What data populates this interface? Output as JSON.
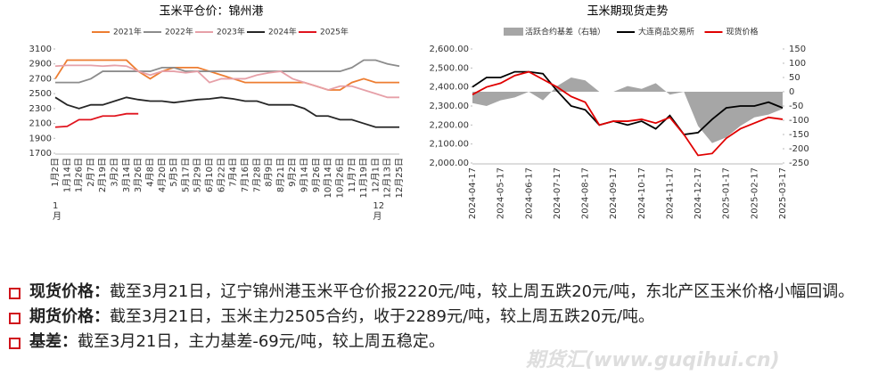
{
  "chart_data": [
    {
      "type": "line",
      "title": "玉米平仓价：锦州港",
      "categories": [
        "1月2日",
        "1月14日",
        "1月26日",
        "2月7日",
        "2月19日",
        "3月2日",
        "3月14日",
        "3月26日",
        "4月8日",
        "4月20日",
        "5月5日",
        "5月17日",
        "5月29日",
        "6月10日",
        "6月22日",
        "7月4日",
        "7月16日",
        "7月28日",
        "8月9日",
        "8月21日",
        "9月2日",
        "9月14日",
        "9月26日",
        "10月14日",
        "10月26日",
        "11月7日",
        "11月19日",
        "12月1日",
        "12月13日",
        "12月25日"
      ],
      "x_group_labels": [
        "1月",
        "12月"
      ],
      "ylim": [
        1700,
        3100
      ],
      "yticks": [
        1700,
        1900,
        2100,
        2300,
        2500,
        2700,
        2900,
        3100
      ],
      "grid": false,
      "series": [
        {
          "name": "2021年",
          "color": "#ed7d31",
          "values": [
            2700,
            2950,
            2950,
            2950,
            2950,
            2950,
            2950,
            2800,
            2700,
            2800,
            2850,
            2850,
            2850,
            2800,
            2750,
            2700,
            2650,
            2650,
            2650,
            2650,
            2650,
            2650,
            2600,
            2550,
            2550,
            2650,
            2700,
            2650,
            2650,
            2650
          ]
        },
        {
          "name": "2022年",
          "color": "#8c8c8c",
          "values": [
            2650,
            2650,
            2650,
            2700,
            2800,
            2800,
            2800,
            2800,
            2800,
            2850,
            2850,
            2800,
            2800,
            2800,
            2800,
            2800,
            2800,
            2800,
            2800,
            2800,
            2800,
            2800,
            2800,
            2800,
            2800,
            2850,
            2950,
            2950,
            2900,
            2870
          ]
        },
        {
          "name": "2023年",
          "color": "#e6a0a8",
          "values": [
            2870,
            2880,
            2880,
            2880,
            2870,
            2880,
            2870,
            2800,
            2750,
            2800,
            2800,
            2780,
            2800,
            2650,
            2700,
            2700,
            2700,
            2750,
            2780,
            2800,
            2700,
            2650,
            2600,
            2550,
            2600,
            2600,
            2550,
            2500,
            2450,
            2450
          ]
        },
        {
          "name": "2024年",
          "color": "#262626",
          "values": [
            2450,
            2350,
            2300,
            2350,
            2350,
            2400,
            2450,
            2420,
            2400,
            2400,
            2380,
            2400,
            2420,
            2430,
            2450,
            2430,
            2400,
            2400,
            2350,
            2350,
            2350,
            2300,
            2200,
            2200,
            2150,
            2150,
            2100,
            2050,
            2050,
            2050
          ]
        },
        {
          "name": "2025年",
          "color": "#e0141e",
          "values": [
            2050,
            2060,
            2150,
            2150,
            2200,
            2200,
            2230,
            2230,
            null,
            null,
            null,
            null,
            null,
            null,
            null,
            null,
            null,
            null,
            null,
            null,
            null,
            null,
            null,
            null,
            null,
            null,
            null,
            null,
            null,
            null
          ]
        }
      ]
    },
    {
      "type": "line",
      "title": "玉米期现货走势",
      "categories": [
        "2024-04-17",
        null,
        "2024-05-17",
        null,
        "2024-06-17",
        null,
        "2024-07-17",
        null,
        "2024-08-17",
        null,
        "2024-09-17",
        null,
        "2024-10-17",
        null,
        "2024-11-17",
        null,
        "2024-12-17",
        null,
        "2025-01-17",
        null,
        "2025-02-17",
        null,
        "2025-03-17"
      ],
      "ylim": [
        2000,
        2600
      ],
      "yticks": [
        {
          "value": 2000,
          "label": "2,000.00"
        },
        {
          "value": 2100,
          "label": "2,100.00"
        },
        {
          "value": 2200,
          "label": "2,200.00"
        },
        {
          "value": 2300,
          "label": "2,300.00"
        },
        {
          "value": 2400,
          "label": "2,400.00"
        },
        {
          "value": 2500,
          "label": "2,500.00"
        },
        {
          "value": 2600,
          "label": "2,600.00"
        }
      ],
      "y2lim": [
        -250,
        150
      ],
      "y2ticks": [
        -250,
        -200,
        -150,
        -100,
        -50,
        0,
        50,
        100,
        150
      ],
      "grid": false,
      "series": [
        {
          "name": "活跃合约基差（右轴）",
          "type": "area",
          "axis": "y2",
          "color": "#a6a6a6",
          "values": [
            -40,
            -50,
            -30,
            -20,
            0,
            -30,
            20,
            50,
            40,
            0,
            0,
            20,
            10,
            30,
            -10,
            0,
            -120,
            -180,
            -160,
            -120,
            -90,
            -80,
            -60
          ]
        },
        {
          "name": "大连商品交易所",
          "color": "#000000",
          "values": [
            2400,
            2450,
            2450,
            2480,
            2480,
            2470,
            2380,
            2300,
            2280,
            2200,
            2220,
            2200,
            2220,
            2180,
            2250,
            2150,
            2160,
            2230,
            2290,
            2300,
            2300,
            2320,
            2290
          ]
        },
        {
          "name": "现货价格",
          "color": "#e00000",
          "values": [
            2360,
            2400,
            2420,
            2460,
            2480,
            2440,
            2400,
            2350,
            2320,
            2200,
            2220,
            2220,
            2230,
            2210,
            2240,
            2150,
            2040,
            2050,
            2130,
            2180,
            2210,
            2240,
            2230
          ]
        }
      ]
    }
  ],
  "bullets": [
    {
      "label": "现货价格：",
      "text": "截至3月21日，辽宁锦州港玉米平仓价报2220元/吨，较上周五跌20元/吨，东北产区玉米价格小幅回调。"
    },
    {
      "label": "期货价格：",
      "text": "截至3月21日，玉米主力2505合约，收于2289元/吨，较上周五跌20元/吨。"
    },
    {
      "label": "基差：",
      "text": "截至3月21日，主力基差-69元/吨，较上周五稳定。"
    }
  ],
  "watermark": "期货汇(www.guqihui.cn)"
}
